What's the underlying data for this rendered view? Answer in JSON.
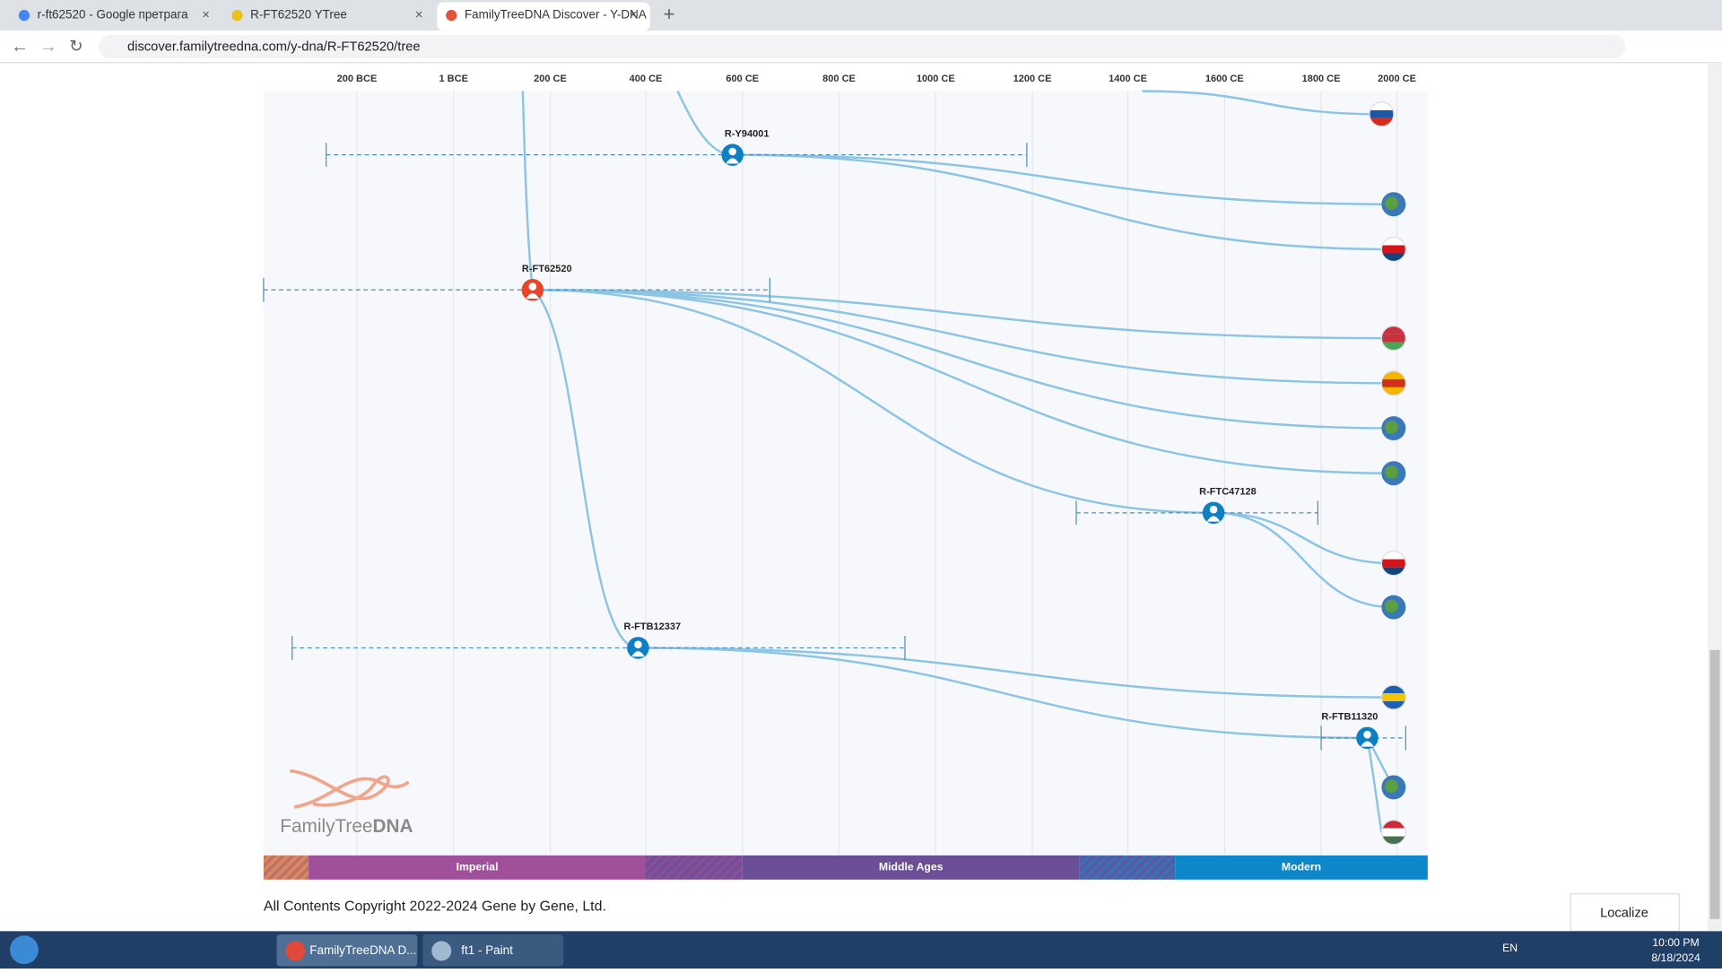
{
  "browser": {
    "tabs": [
      "r-ft62520 - Google претрага",
      "R-FT62520 YTree",
      "FamilyTreeDNA Discover - Y-DNA"
    ],
    "url": "discover.familytreedna.com/y-dna/R-FT62520/tree"
  },
  "timeline": {
    "labels": [
      "200 BCE",
      "1 BCE",
      "200 CE",
      "400 CE",
      "600 CE",
      "800 CE",
      "1000 CE",
      "1200 CE",
      "1400 CE",
      "1600 CE",
      "1800 CE",
      "2000 CE"
    ]
  },
  "nodes": [
    {
      "label": "R-Y94001"
    },
    {
      "label": "R-FT62520"
    },
    {
      "label": "R-FTC47128"
    },
    {
      "label": "R-FTB12337"
    },
    {
      "label": "R-FTB11320"
    }
  ],
  "eras": [
    "Imperial",
    "Middle Ages",
    "Modern"
  ],
  "logo": {
    "brand": "FamilyTree",
    "suffix": "DNA"
  },
  "footer": {
    "copyright": "All Contents Copyright 2022-2024 Gene by Gene, Ltd.",
    "button": "Localize"
  },
  "taskbar": {
    "items": [
      "FamilyTreeDNA D...",
      "ft1 - Paint"
    ],
    "language": "EN",
    "time": "10:00 PM",
    "date": "8/18/2024"
  }
}
